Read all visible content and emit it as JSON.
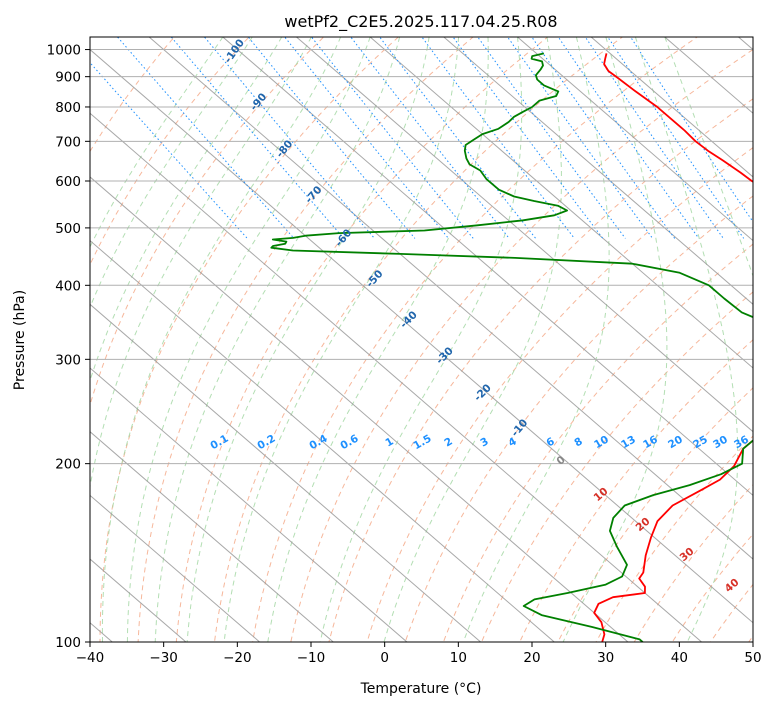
{
  "chart_data": {
    "type": "line",
    "title": "wetPf2_C2E5.2025.117.04.25.R08",
    "xlabel": "Temperature (°C)",
    "ylabel": "Pressure (hPa)",
    "xlim": [
      -40,
      50
    ],
    "ylim": [
      1050,
      100
    ],
    "y_scale": "log",
    "grid": true,
    "x_ticks": [
      -40,
      -30,
      -20,
      -10,
      0,
      10,
      20,
      30,
      40,
      50
    ],
    "y_ticks": [
      100,
      200,
      300,
      400,
      500,
      600,
      700,
      800,
      900,
      1000
    ],
    "skew_reference_pressure": 1000,
    "colors": {
      "temperature": "#ff0000",
      "dewpoint": "#008000",
      "isotherm": "#999999",
      "dry_adiabat": "#f4a582",
      "moist_adiabat": "#a6d8a6",
      "mixing_ratio": "#1e90ff",
      "adiabat_label": "#2166ac",
      "isotherm_label": "#d73027"
    },
    "series": [
      {
        "key": "temperature",
        "points": [
          [
            29.5,
            985
          ],
          [
            28.5,
            965
          ],
          [
            27.5,
            945
          ],
          [
            27.0,
            920
          ],
          [
            27.2,
            895
          ],
          [
            27.5,
            850
          ],
          [
            28.0,
            800
          ],
          [
            28.0,
            760
          ],
          [
            28.0,
            730
          ],
          [
            27.8,
            700
          ],
          [
            28.0,
            675
          ],
          [
            28.5,
            650
          ],
          [
            29.0,
            620
          ],
          [
            29.2,
            600
          ],
          [
            30.0,
            570
          ],
          [
            29.5,
            555
          ],
          [
            29.0,
            535
          ],
          [
            29.5,
            515
          ],
          [
            30.5,
            495
          ],
          [
            31.0,
            470
          ],
          [
            31.5,
            440
          ],
          [
            31.0,
            420
          ],
          [
            30.2,
            400
          ],
          [
            29.5,
            375
          ],
          [
            27.0,
            355
          ],
          [
            22.0,
            335
          ],
          [
            17.0,
            313
          ],
          [
            10.0,
            290
          ],
          [
            3.0,
            265
          ],
          [
            -4.0,
            245
          ],
          [
            -8.0,
            228
          ],
          [
            -14.0,
            212
          ],
          [
            -18.0,
            198
          ],
          [
            -22.0,
            188
          ],
          [
            -26.5,
            180
          ],
          [
            -32.5,
            170
          ],
          [
            -37.0,
            160
          ],
          [
            -40.5,
            150
          ],
          [
            -44.0,
            140
          ],
          [
            -47.0,
            131
          ],
          [
            -48.5,
            128
          ],
          [
            -49.0,
            124
          ],
          [
            -50.0,
            121
          ],
          [
            -55.0,
            119
          ],
          [
            -58.0,
            116
          ],
          [
            -60.0,
            112
          ],
          [
            -60.5,
            108
          ],
          [
            -62.0,
            103
          ],
          [
            -63.5,
            100
          ]
        ]
      },
      {
        "key": "dewpoint",
        "points": [
          [
            21.0,
            985
          ],
          [
            19.0,
            975
          ],
          [
            18.5,
            965
          ],
          [
            19.5,
            955
          ],
          [
            19.0,
            940
          ],
          [
            18.0,
            925
          ],
          [
            16.5,
            905
          ],
          [
            16.0,
            890
          ],
          [
            16.0,
            870
          ],
          [
            17.0,
            850
          ],
          [
            16.0,
            835
          ],
          [
            13.0,
            820
          ],
          [
            11.0,
            800
          ],
          [
            9.0,
            785
          ],
          [
            7.0,
            770
          ],
          [
            5.5,
            755
          ],
          [
            3.0,
            735
          ],
          [
            0.0,
            720
          ],
          [
            -2.0,
            705
          ],
          [
            -4.0,
            690
          ],
          [
            -5.0,
            675
          ],
          [
            -6.0,
            655
          ],
          [
            -6.5,
            640
          ],
          [
            -6.0,
            625
          ],
          [
            -6.5,
            605
          ],
          [
            -6.5,
            580
          ],
          [
            -5.5,
            565
          ],
          [
            -3.5,
            555
          ],
          [
            -1.0,
            545
          ],
          [
            -0.5,
            535
          ],
          [
            -3.0,
            525
          ],
          [
            -8.0,
            515
          ],
          [
            -15.0,
            505
          ],
          [
            -23.0,
            495
          ],
          [
            -35.0,
            490
          ],
          [
            -40.0,
            485
          ],
          [
            -42.0,
            481
          ],
          [
            -45.0,
            478
          ],
          [
            -43.5,
            474
          ],
          [
            -44.0,
            470
          ],
          [
            -46.0,
            466
          ],
          [
            -46.5,
            463
          ],
          [
            -44.0,
            458
          ],
          [
            -30.0,
            452
          ],
          [
            -15.0,
            445
          ],
          [
            0.0,
            435
          ],
          [
            5.0,
            420
          ],
          [
            7.0,
            400
          ],
          [
            7.0,
            380
          ],
          [
            7.2,
            360
          ],
          [
            9.0,
            345
          ],
          [
            14.0,
            330
          ],
          [
            18.0,
            318
          ],
          [
            12.0,
            300
          ],
          [
            8.0,
            285
          ],
          [
            3.0,
            265
          ],
          [
            -4.0,
            245
          ],
          [
            -8.0,
            228
          ],
          [
            -14.0,
            212
          ],
          [
            -16.5,
            200
          ],
          [
            -21.0,
            192
          ],
          [
            -27.0,
            184
          ],
          [
            -33.5,
            177
          ],
          [
            -39.0,
            170
          ],
          [
            -42.5,
            162
          ],
          [
            -45.0,
            154
          ],
          [
            -46.5,
            145
          ],
          [
            -48.0,
            135
          ],
          [
            -50.5,
            129
          ],
          [
            -54.0,
            125
          ],
          [
            -60.5,
            121
          ],
          [
            -66.0,
            118
          ],
          [
            -68.5,
            115
          ],
          [
            -67.5,
            111
          ],
          [
            -62.5,
            106
          ],
          [
            -58.0,
            101
          ],
          [
            -58.0,
            100
          ]
        ]
      }
    ],
    "dry_adiabat_labels": [
      "-100",
      "-90",
      "-80",
      "-70",
      "-60",
      "-50",
      "-40",
      "-30",
      "-20",
      "-10",
      "0",
      "10",
      "20",
      "30",
      "40"
    ],
    "mixing_ratio_labels": [
      "0.1",
      "0.2",
      "0.4",
      "0.6",
      "1",
      "1.5",
      "2",
      "3",
      "4",
      "6",
      "8",
      "10",
      "13",
      "16",
      "20",
      "25",
      "30",
      "36"
    ]
  }
}
